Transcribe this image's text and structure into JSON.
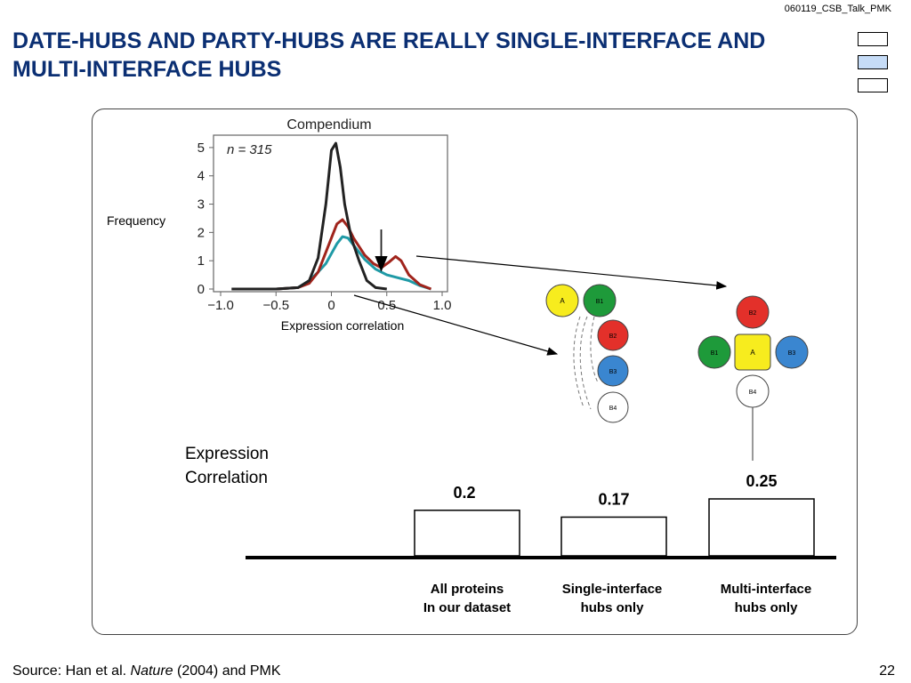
{
  "header": {
    "talk_id": "060119_CSB_Talk_PMK",
    "title_line1": "DATE-HUBS AND PARTY-HUBS ARE REALLY SINGLE-INTERFACE AND",
    "title_line2": "MULTI-INTERFACE HUBS"
  },
  "footer": {
    "source_prefix": "Source: Han et al. ",
    "source_journal": "Nature",
    "source_suffix": " (2004) and PMK",
    "page_number": "22"
  },
  "colors": {
    "title": "#0b2f73",
    "nav_active": "#c6dcf7",
    "curve_black": "#222222",
    "curve_red": "#a0241c",
    "curve_teal": "#1f9aa6",
    "node_yellow": "#f7ec1e",
    "node_green": "#1e9a3a",
    "node_red": "#e3302a",
    "node_blue": "#3a86d0",
    "node_white": "#ffffff"
  },
  "diagram": {
    "single_hub": {
      "center": "A",
      "partners": [
        "B1",
        "B2",
        "B3",
        "B4"
      ]
    },
    "multi_hub": {
      "center": "A",
      "partners": [
        "B1",
        "B2",
        "B3",
        "B4"
      ]
    }
  },
  "chart_data": [
    {
      "type": "line",
      "title": "Compendium",
      "annotation": "n = 315",
      "xlabel": "Expression correlation",
      "ylabel": "Frequency",
      "xlim": [
        -1.0,
        1.0
      ],
      "ylim": [
        0,
        5.5
      ],
      "xticks": [
        "−1.0",
        "−0.5",
        "0",
        "0.5",
        "1.0"
      ],
      "yticks": [
        "0",
        "1",
        "2",
        "3",
        "4",
        "5"
      ],
      "arrow_at_x": 0.45,
      "series": [
        {
          "color": "#222222",
          "x": [
            -0.9,
            -0.5,
            -0.3,
            -0.2,
            -0.12,
            -0.05,
            0.0,
            0.04,
            0.08,
            0.12,
            0.18,
            0.25,
            0.32,
            0.4,
            0.5
          ],
          "y": [
            0.0,
            0.0,
            0.05,
            0.3,
            1.1,
            3.0,
            4.9,
            5.15,
            4.3,
            3.0,
            1.8,
            1.0,
            0.3,
            0.05,
            0.0
          ]
        },
        {
          "color": "#a0241c",
          "x": [
            -0.9,
            -0.5,
            -0.3,
            -0.2,
            -0.12,
            -0.05,
            0.0,
            0.05,
            0.1,
            0.15,
            0.2,
            0.3,
            0.38,
            0.45,
            0.52,
            0.58,
            0.63,
            0.7,
            0.8,
            0.9
          ],
          "y": [
            0.0,
            0.0,
            0.05,
            0.2,
            0.6,
            1.3,
            1.8,
            2.3,
            2.45,
            2.2,
            1.8,
            1.2,
            0.9,
            0.75,
            0.95,
            1.15,
            1.0,
            0.5,
            0.15,
            0.0
          ]
        },
        {
          "color": "#1f9aa6",
          "x": [
            -0.9,
            -0.5,
            -0.3,
            -0.2,
            -0.12,
            -0.05,
            0.0,
            0.05,
            0.1,
            0.15,
            0.2,
            0.3,
            0.4,
            0.5,
            0.6,
            0.7,
            0.8,
            0.9
          ],
          "y": [
            0.0,
            0.0,
            0.05,
            0.3,
            0.6,
            0.9,
            1.25,
            1.6,
            1.85,
            1.8,
            1.55,
            1.05,
            0.7,
            0.5,
            0.4,
            0.3,
            0.12,
            0.0
          ]
        }
      ]
    },
    {
      "type": "bar",
      "ylabel_line1": "Expression",
      "ylabel_line2": "Correlation",
      "ylim": [
        0,
        0.3
      ],
      "categories": [
        {
          "line1": "All proteins",
          "line2": "In our dataset"
        },
        {
          "line1": "Single-interface",
          "line2": "hubs only"
        },
        {
          "line1": "Multi-interface",
          "line2": "hubs only"
        }
      ],
      "values": [
        0.2,
        0.17,
        0.25
      ],
      "value_labels": [
        "0.2",
        "0.17",
        "0.25"
      ]
    }
  ]
}
